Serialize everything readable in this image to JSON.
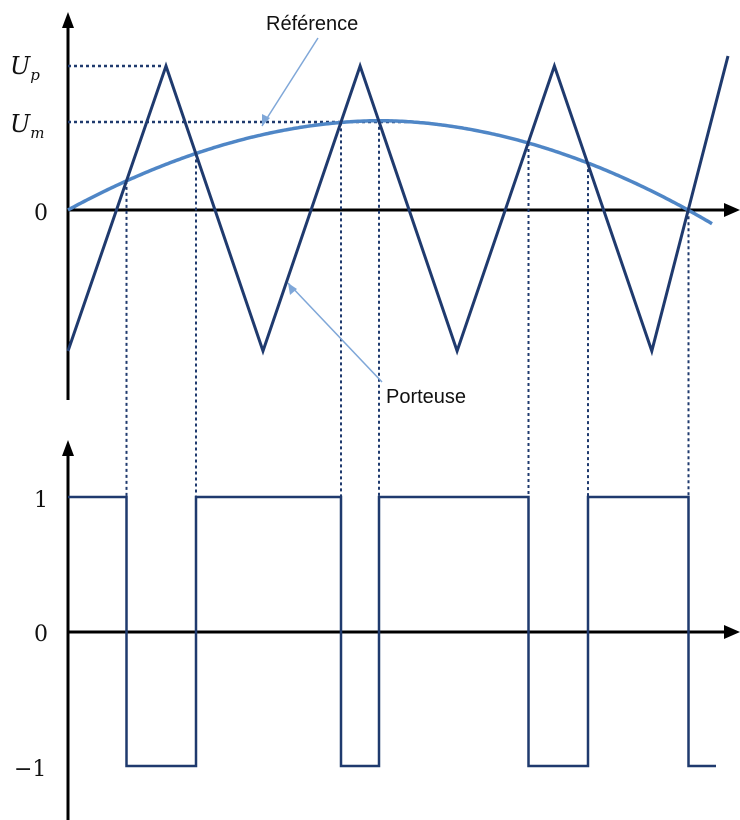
{
  "labels": {
    "reference": "Référence",
    "carrier": "Porteuse"
  },
  "top_axis": {
    "up_main": "U",
    "up_sub": "p",
    "um_main": "U",
    "um_sub": "m",
    "zero": "0"
  },
  "bottom_axis": {
    "one": "1",
    "zero": "0",
    "minus_one": "−1"
  },
  "colors": {
    "carrier": "#1f3a6e",
    "reference": "#4f86c6",
    "axis": "#000000",
    "pointer": "#7fa7d8"
  },
  "signal": {
    "carrier_extrema_x_fraction": [
      0,
      0.1485,
      0.2955,
      0.4425,
      0.5895,
      0.737,
      0.8845,
      1.0
    ],
    "reference_peak_ratio_um_over_up": 0.62
  }
}
